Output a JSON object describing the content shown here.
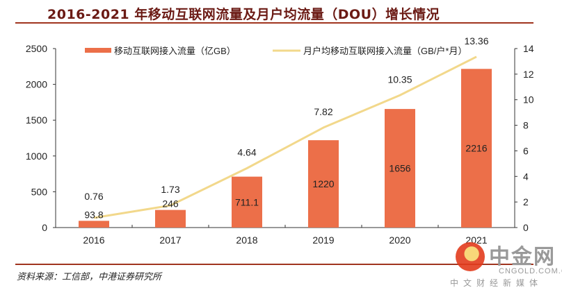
{
  "title": "2016-2021 年移动互联网流量及月户均流量（DOU）增长情况",
  "source": "资料来源：工信部，中港证券研究所",
  "watermark": {
    "brand": "中金网",
    "site": "CNGOLD.COM.CN",
    "tagline": "中文财经新媒体"
  },
  "colors": {
    "bar": "#ec6f49",
    "line": "#f2d88b",
    "title": "#6b1a14",
    "rule": "#a0341e",
    "axis": "#333333"
  },
  "chart_data": {
    "type": "bar+line",
    "title": "2016-2021 年移动互联网流量及月户均流量（DOU）增长情况",
    "categories": [
      "2016",
      "2017",
      "2018",
      "2019",
      "2020",
      "2021"
    ],
    "series": [
      {
        "name": "移动互联网接入流量（亿GB）",
        "type": "bar",
        "axis": "left",
        "values": [
          93.8,
          246,
          711.1,
          1220,
          1656,
          2216
        ],
        "labels": [
          "93.8",
          "246",
          "711.1",
          "1220",
          "1656",
          "2216"
        ]
      },
      {
        "name": "月户均移动互联网接入流量（GB/户*月）",
        "type": "line",
        "axis": "right",
        "values": [
          0.76,
          1.73,
          4.64,
          7.82,
          10.35,
          13.36
        ],
        "labels": [
          "0.76",
          "1.73",
          "4.64",
          "7.82",
          "10.35",
          "13.36"
        ]
      }
    ],
    "left_axis": {
      "min": 0,
      "max": 2500,
      "ticks": [
        "0",
        "500",
        "1000",
        "1500",
        "2000",
        "2500"
      ]
    },
    "right_axis": {
      "min": 0,
      "max": 14,
      "ticks": [
        "0",
        "2",
        "4",
        "6",
        "8",
        "10",
        "12",
        "14"
      ]
    },
    "grid": false,
    "legend": "top"
  }
}
